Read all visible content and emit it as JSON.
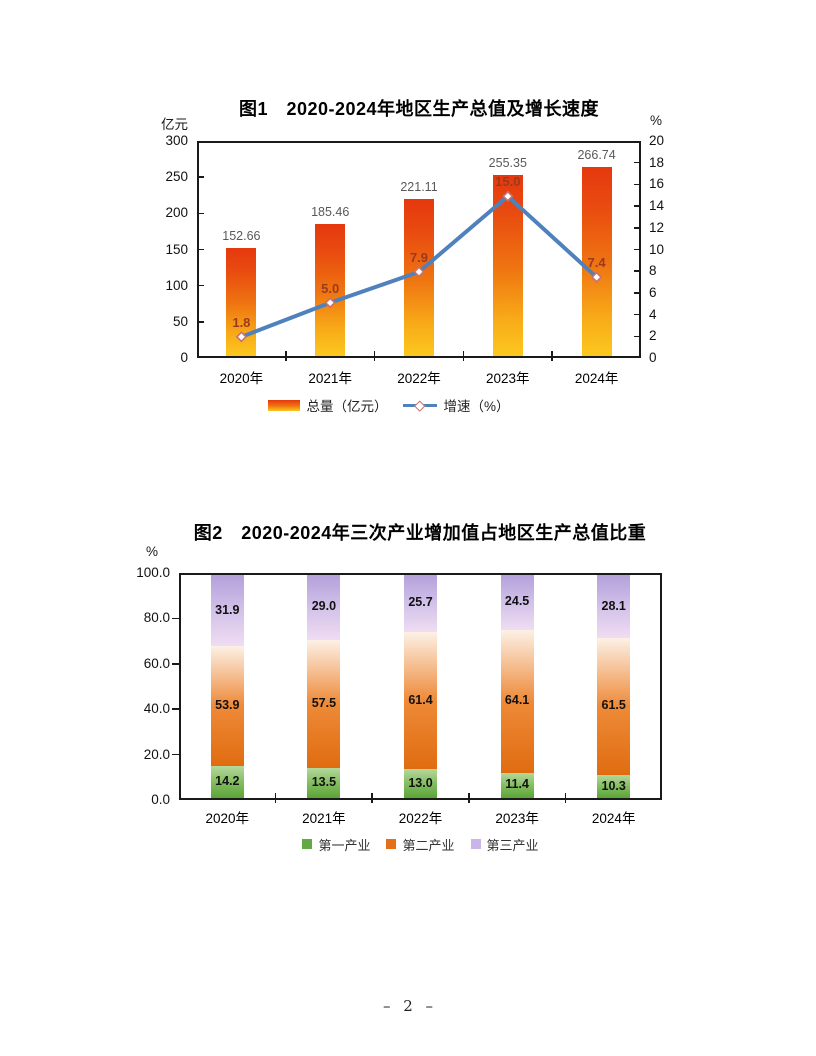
{
  "page_number": "– 2 –",
  "chart_data": [
    {
      "type": "bar",
      "subtype": "bar-line-combo",
      "title": "图1　2020-2024年地区生产总值及增长速度",
      "categories": [
        "2020年",
        "2021年",
        "2022年",
        "2023年",
        "2024年"
      ],
      "series": [
        {
          "name": "总量（亿元）",
          "kind": "bar",
          "axis": "left",
          "values": [
            152.66,
            185.46,
            221.11,
            255.35,
            266.74
          ],
          "labels": [
            "152.66",
            "185.46",
            "221.11",
            "255.35",
            "266.74"
          ]
        },
        {
          "name": "增速（%）",
          "kind": "line",
          "axis": "right",
          "values": [
            1.8,
            5.0,
            7.9,
            15.0,
            7.4
          ],
          "labels": [
            "1.8",
            "5.0",
            "7.9",
            "15.0",
            "7.4"
          ]
        }
      ],
      "left_axis": {
        "unit": "亿元",
        "min": 0,
        "max": 300,
        "ticks": [
          "300",
          "250",
          "200",
          "150",
          "100",
          "50",
          "0"
        ]
      },
      "right_axis": {
        "unit": "%",
        "min": 0,
        "max": 20,
        "ticks": [
          "20",
          "18",
          "16",
          "14",
          "12",
          "10",
          "8",
          "6",
          "4",
          "2",
          "0"
        ]
      },
      "legend_position": "bottom",
      "grid": false,
      "colors": {
        "bar_gradient_top": "#e5380e",
        "bar_gradient_mid": "#ef7511",
        "bar_gradient_bottom": "#fcc81f",
        "line": "#4f81bd",
        "marker_fill": "#ffffff",
        "marker_stroke": "#c9716a",
        "bar_value_label": "#595959",
        "line_value_label": "#9c3a20"
      }
    },
    {
      "type": "bar",
      "subtype": "stacked-percent",
      "title": "图2　2020-2024年三次产业增加值占地区生产总值比重",
      "categories": [
        "2020年",
        "2021年",
        "2022年",
        "2023年",
        "2024年"
      ],
      "series": [
        {
          "name": "第一产业",
          "values": [
            14.2,
            13.5,
            13.0,
            11.4,
            10.3
          ],
          "labels": [
            "14.2",
            "13.5",
            "13.0",
            "11.4",
            "10.3"
          ],
          "gradient_top": "#b5d89c",
          "gradient_mid": "#84bd61",
          "gradient_bottom": "#5aa537",
          "legend_color": "#63a845"
        },
        {
          "name": "第二产业",
          "values": [
            53.9,
            57.5,
            61.4,
            64.1,
            61.5
          ],
          "labels": [
            "53.9",
            "57.5",
            "61.4",
            "64.1",
            "61.5"
          ],
          "gradient_top": "#fcf1e6",
          "gradient_mid": "#ee8a38",
          "gradient_bottom": "#e06c10",
          "legend_color": "#e4701a"
        },
        {
          "name": "第三产业",
          "values": [
            31.9,
            29.0,
            25.7,
            24.5,
            28.1
          ],
          "labels": [
            "31.9",
            "29.0",
            "25.7",
            "24.5",
            "28.1"
          ],
          "gradient_top": "#b3a0da",
          "gradient_mid": "#d2c1e9",
          "gradient_bottom": "#f0dcf2",
          "legend_color": "#c9b5e8"
        }
      ],
      "left_axis": {
        "unit": "%",
        "min": 0,
        "max": 100,
        "ticks": [
          "100.0",
          "80.0",
          "60.0",
          "40.0",
          "20.0",
          "0.0"
        ]
      },
      "legend_position": "bottom",
      "grid": false
    }
  ]
}
